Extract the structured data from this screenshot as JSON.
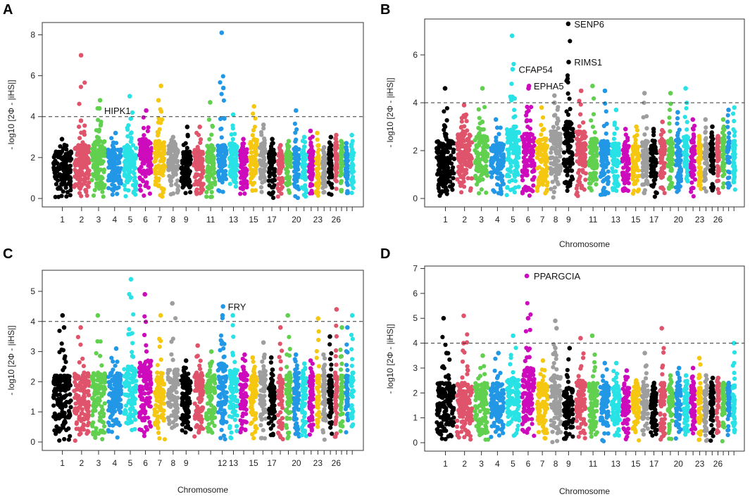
{
  "figure": {
    "xlabel": "Chromosome",
    "ylabel": "- log10 [2Φ - |iHS|]"
  },
  "palette": [
    "#000000",
    "#df536b",
    "#61d04f",
    "#2297e6",
    "#28e2e5",
    "#cd0bbc",
    "#f5c710",
    "#9e9e9e"
  ],
  "chart_data": [
    {
      "panel": "A",
      "type": "scatter",
      "xlabel": "",
      "ylabel": "- log10 [2Φ - |iHS|]",
      "threshold": 4,
      "ylim": [
        0,
        8.6
      ],
      "yticks": [
        0,
        2,
        4,
        6,
        8
      ],
      "xticks": [
        "1",
        "2",
        "3",
        "4",
        "5",
        "6",
        "7",
        "8",
        "9",
        "11",
        "13",
        "15",
        "17",
        "20",
        "23",
        "26"
      ],
      "chromosomes": [
        {
          "chr": 1,
          "base": 2.3,
          "peaks": [
            2.9
          ]
        },
        {
          "chr": 2,
          "base": 2.6,
          "peaks": [
            3.8,
            7.0
          ]
        },
        {
          "chr": 3,
          "base": 2.8,
          "peaks": [
            4.4,
            4.8
          ]
        },
        {
          "chr": 4,
          "base": 2.4,
          "peaks": [
            3.2
          ]
        },
        {
          "chr": 5,
          "base": 2.6,
          "peaks": [
            3.9,
            5.0
          ]
        },
        {
          "chr": 6,
          "base": 2.9,
          "peaks": [
            4.3
          ]
        },
        {
          "chr": 7,
          "base": 2.8,
          "peaks": [
            4.8,
            5.5
          ]
        },
        {
          "chr": 8,
          "base": 2.6,
          "peaks": [
            3.0
          ]
        },
        {
          "chr": 9,
          "base": 2.3,
          "peaks": [
            3.5
          ]
        },
        {
          "chr": 10,
          "base": 2.4,
          "peaks": [
            3.5
          ]
        },
        {
          "chr": 11,
          "base": 2.6,
          "peaks": [
            4.7
          ]
        },
        {
          "chr": 12,
          "base": 2.6,
          "peaks": [
            5.4,
            8.1
          ]
        },
        {
          "chr": 13,
          "base": 2.7,
          "peaks": [
            4.1
          ]
        },
        {
          "chr": 14,
          "base": 2.4,
          "peaks": [
            2.9
          ]
        },
        {
          "chr": 15,
          "base": 2.9,
          "peaks": [
            4.5
          ]
        },
        {
          "chr": 16,
          "base": 2.7,
          "peaks": [
            3.6
          ]
        },
        {
          "chr": 17,
          "base": 2.3,
          "peaks": [
            2.9
          ]
        },
        {
          "chr": 18,
          "base": 2.2,
          "peaks": [
            2.6
          ]
        },
        {
          "chr": 19,
          "base": 2.3,
          "peaks": [
            2.8
          ]
        },
        {
          "chr": 20,
          "base": 2.5,
          "peaks": [
            4.3
          ]
        },
        {
          "chr": 21,
          "base": 2.3,
          "peaks": [
            3.0
          ]
        },
        {
          "chr": 22,
          "base": 2.4,
          "peaks": [
            3.3
          ]
        },
        {
          "chr": 23,
          "base": 2.1,
          "peaks": [
            3.2
          ]
        },
        {
          "chr": 24,
          "base": 2.0,
          "peaks": [
            2.5
          ]
        },
        {
          "chr": 25,
          "base": 2.4,
          "peaks": [
            3.0
          ]
        },
        {
          "chr": 26,
          "base": 2.6,
          "peaks": [
            3.1
          ]
        },
        {
          "chr": 27,
          "base": 2.4,
          "peaks": [
            2.8
          ]
        },
        {
          "chr": 28,
          "base": 2.2,
          "peaks": [
            2.7
          ]
        },
        {
          "chr": 29,
          "base": 2.3,
          "peaks": [
            3.1
          ]
        }
      ],
      "annotations": [
        {
          "text": "HIPK1",
          "chr": 3,
          "y": 4.3
        }
      ]
    },
    {
      "panel": "B",
      "type": "scatter",
      "xlabel": "Chromosome",
      "ylabel": "- log10 [2Φ - |iHS|]",
      "threshold": 4,
      "ylim": [
        0,
        7.5
      ],
      "yticks": [
        0,
        2,
        4,
        6
      ],
      "xticks": [
        "1",
        "2",
        "3",
        "4",
        "5",
        "6",
        "7",
        "8",
        "9",
        "11",
        "13",
        "15",
        "17",
        "20",
        "23",
        "26"
      ],
      "chromosomes": [
        {
          "chr": 1,
          "base": 2.4,
          "peaks": [
            4.6,
            3.0
          ]
        },
        {
          "chr": 2,
          "base": 2.7,
          "peaks": [
            3.9,
            3.5
          ]
        },
        {
          "chr": 3,
          "base": 2.6,
          "peaks": [
            4.6,
            3.2
          ]
        },
        {
          "chr": 4,
          "base": 2.3,
          "peaks": [
            3.3
          ]
        },
        {
          "chr": 5,
          "base": 3.0,
          "peaks": [
            5.4,
            6.8
          ]
        },
        {
          "chr": 6,
          "base": 2.7,
          "peaks": [
            4.6,
            4.7
          ]
        },
        {
          "chr": 7,
          "base": 2.5,
          "peaks": [
            3.8
          ]
        },
        {
          "chr": 8,
          "base": 2.8,
          "peaks": [
            4.0,
            4.3
          ]
        },
        {
          "chr": 9,
          "base": 3.2,
          "peaks": [
            5.7,
            7.3
          ]
        },
        {
          "chr": 10,
          "base": 2.8,
          "peaks": [
            4.5
          ]
        },
        {
          "chr": 11,
          "base": 2.5,
          "peaks": [
            4.7
          ]
        },
        {
          "chr": 12,
          "base": 2.4,
          "peaks": [
            4.5
          ]
        },
        {
          "chr": 13,
          "base": 2.3,
          "peaks": [
            3.7
          ]
        },
        {
          "chr": 14,
          "base": 2.2,
          "peaks": [
            2.9
          ]
        },
        {
          "chr": 15,
          "base": 2.2,
          "peaks": [
            3.0
          ]
        },
        {
          "chr": 16,
          "base": 2.4,
          "peaks": [
            4.4
          ]
        },
        {
          "chr": 17,
          "base": 2.2,
          "peaks": [
            2.9
          ]
        },
        {
          "chr": 18,
          "base": 2.4,
          "peaks": [
            3.2
          ]
        },
        {
          "chr": 19,
          "base": 2.5,
          "peaks": [
            4.4
          ]
        },
        {
          "chr": 20,
          "base": 2.5,
          "peaks": [
            3.6
          ]
        },
        {
          "chr": 21,
          "base": 2.6,
          "peaks": [
            4.6
          ]
        },
        {
          "chr": 22,
          "base": 2.5,
          "peaks": [
            3.3
          ]
        },
        {
          "chr": 23,
          "base": 2.2,
          "peaks": [
            2.6
          ]
        },
        {
          "chr": 24,
          "base": 2.3,
          "peaks": [
            3.3
          ]
        },
        {
          "chr": 25,
          "base": 2.4,
          "peaks": [
            3.0
          ]
        },
        {
          "chr": 26,
          "base": 2.4,
          "peaks": [
            2.6
          ]
        },
        {
          "chr": 27,
          "base": 2.5,
          "peaks": [
            3.3
          ]
        },
        {
          "chr": 28,
          "base": 2.4,
          "peaks": [
            3.7
          ]
        },
        {
          "chr": 29,
          "base": 2.4,
          "peaks": [
            3.8
          ]
        }
      ],
      "annotations": [
        {
          "text": "SENP6",
          "chr": 9,
          "y": 7.3
        },
        {
          "text": "RIMS1",
          "chr": 9,
          "y": 5.7
        },
        {
          "text": "CFAP54",
          "chr": 5,
          "y": 5.4
        },
        {
          "text": "EPHA5",
          "chr": 6,
          "y": 4.7
        }
      ]
    },
    {
      "panel": "C",
      "type": "scatter",
      "xlabel": "Chromosome",
      "ylabel": "- log10 [2Φ - |iHS|]",
      "threshold": 4,
      "ylim": [
        0,
        5.7
      ],
      "yticks": [
        0,
        1,
        2,
        3,
        4,
        5
      ],
      "xticks": [
        "1",
        "2",
        "3",
        "4",
        "5",
        "6",
        "7",
        "8",
        "9",
        "12",
        "13",
        "15",
        "17",
        "20",
        "23",
        "26"
      ],
      "chromosomes": [
        {
          "chr": 1,
          "base": 2.2,
          "peaks": [
            4.2,
            3.8
          ]
        },
        {
          "chr": 2,
          "base": 2.3,
          "peaks": [
            3.8
          ]
        },
        {
          "chr": 3,
          "base": 2.3,
          "peaks": [
            4.2
          ]
        },
        {
          "chr": 4,
          "base": 2.3,
          "peaks": [
            3.1
          ]
        },
        {
          "chr": 5,
          "base": 2.5,
          "peaks": [
            4.8,
            5.4
          ]
        },
        {
          "chr": 6,
          "base": 2.7,
          "peaks": [
            4.9
          ]
        },
        {
          "chr": 7,
          "base": 2.3,
          "peaks": [
            4.2
          ]
        },
        {
          "chr": 8,
          "base": 2.4,
          "peaks": [
            4.6
          ]
        },
        {
          "chr": 9,
          "base": 2.2,
          "peaks": [
            2.7
          ]
        },
        {
          "chr": 10,
          "base": 2.3,
          "peaks": [
            3.2
          ]
        },
        {
          "chr": 11,
          "base": 2.3,
          "peaks": [
            3.0
          ]
        },
        {
          "chr": 12,
          "base": 2.6,
          "peaks": [
            4.5,
            4.2
          ]
        },
        {
          "chr": 13,
          "base": 2.4,
          "peaks": [
            4.2
          ]
        },
        {
          "chr": 14,
          "base": 2.3,
          "peaks": [
            2.9
          ]
        },
        {
          "chr": 15,
          "base": 2.2,
          "peaks": [
            2.8
          ]
        },
        {
          "chr": 16,
          "base": 2.4,
          "peaks": [
            3.3
          ]
        },
        {
          "chr": 17,
          "base": 2.1,
          "peaks": [
            2.8
          ]
        },
        {
          "chr": 18,
          "base": 2.2,
          "peaks": [
            3.8
          ]
        },
        {
          "chr": 19,
          "base": 2.3,
          "peaks": [
            4.2
          ]
        },
        {
          "chr": 20,
          "base": 2.3,
          "peaks": [
            2.9
          ]
        },
        {
          "chr": 21,
          "base": 2.2,
          "peaks": [
            2.6
          ]
        },
        {
          "chr": 22,
          "base": 2.2,
          "peaks": [
            2.7
          ]
        },
        {
          "chr": 23,
          "base": 2.2,
          "peaks": [
            4.1
          ]
        },
        {
          "chr": 24,
          "base": 2.3,
          "peaks": [
            2.9
          ]
        },
        {
          "chr": 25,
          "base": 2.2,
          "peaks": [
            3.5
          ]
        },
        {
          "chr": 26,
          "base": 2.3,
          "peaks": [
            4.4
          ]
        },
        {
          "chr": 27,
          "base": 2.2,
          "peaks": [
            3.8
          ]
        },
        {
          "chr": 28,
          "base": 2.2,
          "peaks": [
            3.8
          ]
        },
        {
          "chr": 29,
          "base": 2.3,
          "peaks": [
            4.2
          ]
        }
      ],
      "annotations": [
        {
          "text": "FRY",
          "chr": 12,
          "y": 4.5
        }
      ]
    },
    {
      "panel": "D",
      "type": "scatter",
      "xlabel": "Chromosome",
      "ylabel": "- log10 [2Φ - |iHS|]",
      "threshold": 4,
      "ylim": [
        0,
        7.1
      ],
      "yticks": [
        0,
        1,
        2,
        3,
        4,
        5,
        6,
        7
      ],
      "xticks": [
        "1",
        "2",
        "3",
        "4",
        "5",
        "6",
        "7",
        "8",
        "9",
        "11",
        "13",
        "15",
        "17",
        "20",
        "23",
        "26"
      ],
      "chromosomes": [
        {
          "chr": 1,
          "base": 2.4,
          "peaks": [
            5.0,
            3.6
          ]
        },
        {
          "chr": 2,
          "base": 2.4,
          "peaks": [
            5.1,
            4.0
          ]
        },
        {
          "chr": 3,
          "base": 2.4,
          "peaks": [
            3.5
          ]
        },
        {
          "chr": 4,
          "base": 2.4,
          "peaks": [
            3.6
          ]
        },
        {
          "chr": 5,
          "base": 2.6,
          "peaks": [
            4.3
          ]
        },
        {
          "chr": 6,
          "base": 3.0,
          "peaks": [
            6.7,
            5.0
          ]
        },
        {
          "chr": 7,
          "base": 2.4,
          "peaks": [
            3.3
          ]
        },
        {
          "chr": 8,
          "base": 2.7,
          "peaks": [
            4.9,
            4.6
          ]
        },
        {
          "chr": 9,
          "base": 2.2,
          "peaks": [
            3.8
          ]
        },
        {
          "chr": 10,
          "base": 2.5,
          "peaks": [
            4.2
          ]
        },
        {
          "chr": 11,
          "base": 2.4,
          "peaks": [
            4.3
          ]
        },
        {
          "chr": 12,
          "base": 2.3,
          "peaks": [
            3.2
          ]
        },
        {
          "chr": 13,
          "base": 2.3,
          "peaks": [
            3.2
          ]
        },
        {
          "chr": 14,
          "base": 2.2,
          "peaks": [
            2.9
          ]
        },
        {
          "chr": 15,
          "base": 2.2,
          "peaks": [
            2.5
          ]
        },
        {
          "chr": 16,
          "base": 2.3,
          "peaks": [
            3.6
          ]
        },
        {
          "chr": 17,
          "base": 2.0,
          "peaks": [
            2.4
          ]
        },
        {
          "chr": 18,
          "base": 2.4,
          "peaks": [
            4.6
          ]
        },
        {
          "chr": 19,
          "base": 2.2,
          "peaks": [
            2.7
          ]
        },
        {
          "chr": 20,
          "base": 2.3,
          "peaks": [
            3.0
          ]
        },
        {
          "chr": 21,
          "base": 2.2,
          "peaks": [
            2.7
          ]
        },
        {
          "chr": 22,
          "base": 2.3,
          "peaks": [
            3.0
          ]
        },
        {
          "chr": 23,
          "base": 2.2,
          "peaks": [
            3.4
          ]
        },
        {
          "chr": 24,
          "base": 2.1,
          "peaks": [
            2.7
          ]
        },
        {
          "chr": 25,
          "base": 2.2,
          "peaks": [
            2.6
          ]
        },
        {
          "chr": 26,
          "base": 2.3,
          "peaks": [
            2.6
          ]
        },
        {
          "chr": 27,
          "base": 2.2,
          "peaks": [
            2.4
          ]
        },
        {
          "chr": 28,
          "base": 2.2,
          "peaks": [
            2.4
          ]
        },
        {
          "chr": 29,
          "base": 2.3,
          "peaks": [
            4.0
          ]
        }
      ],
      "annotations": [
        {
          "text": "PPARGCIA",
          "chr": 6,
          "y": 6.7
        }
      ]
    }
  ]
}
